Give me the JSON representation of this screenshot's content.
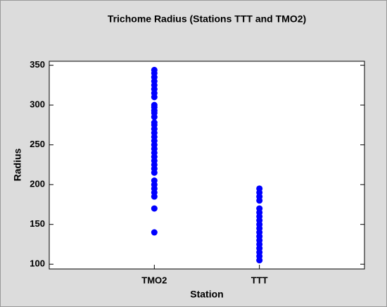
{
  "chart_data": {
    "type": "strip",
    "title": "Trichome Radius (Stations TTT and TMO2)",
    "x_label": "Station",
    "y_label": "Radius",
    "categories": [
      "TMO2",
      "TTT"
    ],
    "values": [
      [
        344,
        340,
        335,
        330,
        325,
        320,
        315,
        310,
        300,
        297,
        293,
        290,
        285,
        278,
        275,
        270,
        265,
        260,
        255,
        250,
        245,
        240,
        235,
        230,
        225,
        220,
        215,
        205,
        200,
        195,
        190,
        185,
        170,
        140
      ],
      [
        195,
        190,
        185,
        180,
        170,
        165,
        160,
        155,
        150,
        145,
        140,
        135,
        130,
        125,
        120,
        115,
        110,
        105
      ]
    ],
    "color": "#0000ff",
    "ylim": [
      94,
      355
    ],
    "yticks": [
      100,
      150,
      200,
      250,
      300,
      350
    ]
  }
}
